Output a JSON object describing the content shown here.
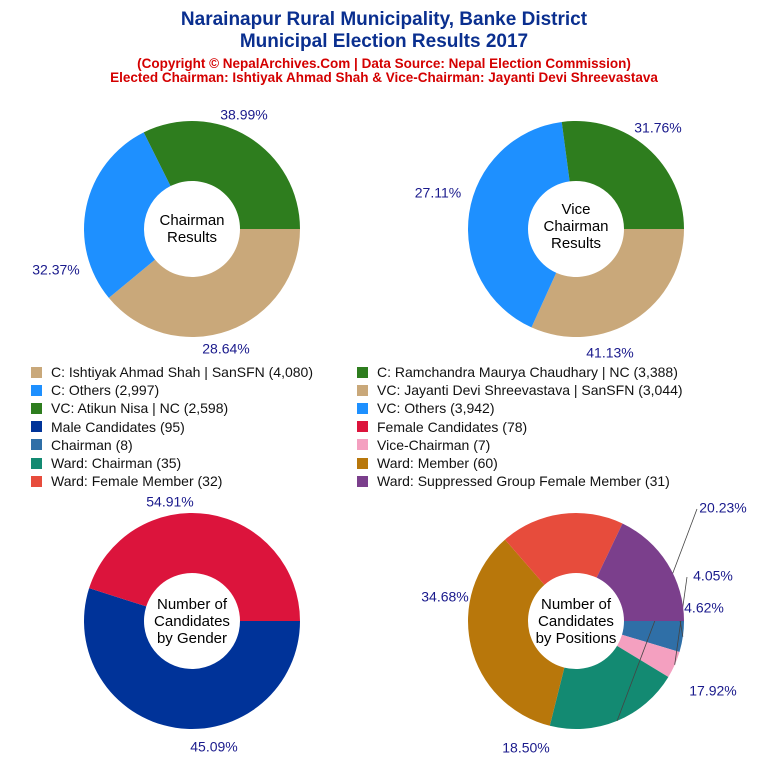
{
  "header": {
    "title_line1": "Narainapur Rural Municipality, Banke District",
    "title_line2": "Municipal Election Results 2017",
    "subtitle_line1": "(Copyright © NepalArchives.Com | Data Source: Nepal Election Commission)",
    "subtitle_line2": "Elected Chairman: Ishtiyak Ahmad Shah & Vice-Chairman: Jayanti Devi Shreevastava"
  },
  "legend": [
    {
      "label": "C: Ishtiyak Ahmad Shah | SanSFN (4,080)",
      "color": "#c9a87a"
    },
    {
      "label": "C: Ramchandra Maurya Chaudhary | NC (3,388)",
      "color": "#2e7d1e"
    },
    {
      "label": "C: Others (2,997)",
      "color": "#1e90ff"
    },
    {
      "label": "VC: Jayanti Devi Shreevastava | SanSFN (3,044)",
      "color": "#c9a87a"
    },
    {
      "label": "VC: Atikun Nisa | NC (2,598)",
      "color": "#2e7d1e"
    },
    {
      "label": "VC: Others (3,942)",
      "color": "#1e90ff"
    },
    {
      "label": "Male Candidates (95)",
      "color": "#003399"
    },
    {
      "label": "Female Candidates (78)",
      "color": "#dc143c"
    },
    {
      "label": "Chairman (8)",
      "color": "#2f6fa7"
    },
    {
      "label": "Vice-Chairman (7)",
      "color": "#f4a0c0"
    },
    {
      "label": "Ward: Chairman (35)",
      "color": "#138a72"
    },
    {
      "label": "Ward: Member (60)",
      "color": "#b8770b"
    },
    {
      "label": "Ward: Female Member (32)",
      "color": "#e74c3c"
    },
    {
      "label": "Ward: Suppressed Group Female Member (31)",
      "color": "#7b3f8c"
    }
  ],
  "chart_data": [
    {
      "type": "pie",
      "title": "Chairman Results",
      "center_lines": [
        "Chairman",
        "Results"
      ],
      "slices": [
        {
          "name": "C: Ishtiyak Ahmad Shah | SanSFN",
          "value": 4080,
          "label": "38.99%",
          "color": "#c9a87a"
        },
        {
          "name": "C: Others",
          "value": 2997,
          "label": "28.64%",
          "color": "#1e90ff"
        },
        {
          "name": "C: Ramchandra Maurya Chaudhary | NC",
          "value": 3388,
          "label": "32.37%",
          "color": "#2e7d1e"
        }
      ]
    },
    {
      "type": "pie",
      "title": "Vice Chairman Results",
      "center_lines": [
        "Vice",
        "Chairman",
        "Results"
      ],
      "slices": [
        {
          "name": "VC: Jayanti Devi Shreevastava | SanSFN",
          "value": 3044,
          "label": "31.76%",
          "color": "#c9a87a"
        },
        {
          "name": "VC: Others",
          "value": 3942,
          "label": "41.13%",
          "color": "#1e90ff"
        },
        {
          "name": "VC: Atikun Nisa | NC",
          "value": 2598,
          "label": "27.11%",
          "color": "#2e7d1e"
        }
      ]
    },
    {
      "type": "pie",
      "title": "Number of Candidates by Gender",
      "center_lines": [
        "Number of",
        "Candidates",
        "by Gender"
      ],
      "slices": [
        {
          "name": "Male Candidates",
          "value": 95,
          "label": "54.91%",
          "color": "#003399"
        },
        {
          "name": "Female Candidates",
          "value": 78,
          "label": "45.09%",
          "color": "#dc143c"
        }
      ]
    },
    {
      "type": "pie",
      "title": "Number of Candidates by Positions",
      "center_lines": [
        "Number of",
        "Candidates",
        "by Positions"
      ],
      "slices": [
        {
          "name": "Chairman",
          "value": 8,
          "label": "4.62%",
          "color": "#2f6fa7"
        },
        {
          "name": "Vice-Chairman",
          "value": 7,
          "label": "4.05%",
          "color": "#f4a0c0"
        },
        {
          "name": "Ward: Chairman",
          "value": 35,
          "label": "20.23%",
          "color": "#138a72"
        },
        {
          "name": "Ward: Member",
          "value": 60,
          "label": "34.68%",
          "color": "#b8770b"
        },
        {
          "name": "Ward: Female Member",
          "value": 32,
          "label": "18.50%",
          "color": "#e74c3c"
        },
        {
          "name": "Ward: Suppressed Group Female Member",
          "value": 31,
          "label": "17.92%",
          "color": "#7b3f8c"
        }
      ]
    }
  ]
}
